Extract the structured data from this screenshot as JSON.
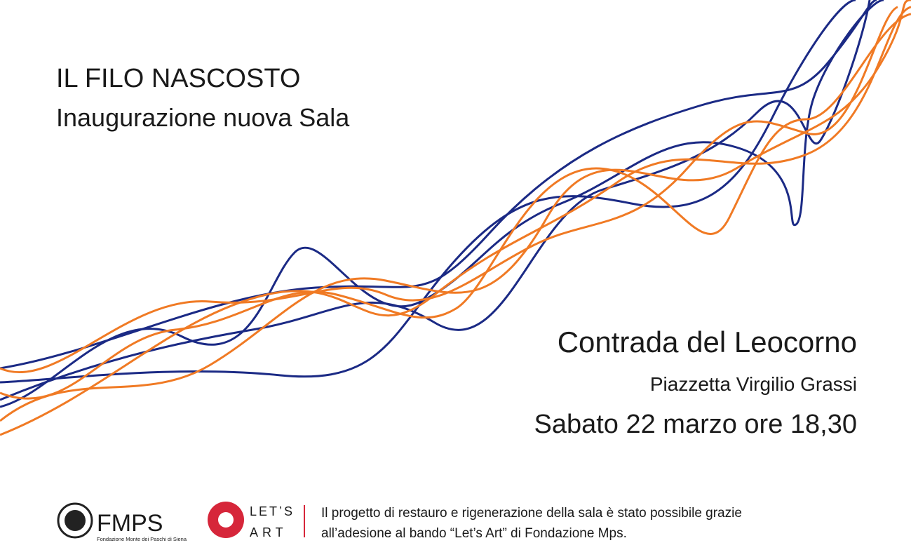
{
  "header": {
    "title": "IL FILO NASCOSTO",
    "subtitle": "Inaugurazione nuova Sala"
  },
  "event": {
    "venue": "Contrada del Leocorno",
    "address": "Piazzetta Virgilio Grassi",
    "datetime": "Sabato 22 marzo ore 18,30"
  },
  "footer": {
    "logos": [
      {
        "name": "FMPS",
        "caption": "Fondazione Monte dei Paschi di Siena"
      },
      {
        "lines": [
          "LET’S",
          "ART"
        ]
      }
    ],
    "text": [
      "Il progetto di restauro e rigenerazione della sala è stato possibile grazie",
      "all’adesione al bando “Let’s Art” di Fondazione Mps."
    ]
  }
}
